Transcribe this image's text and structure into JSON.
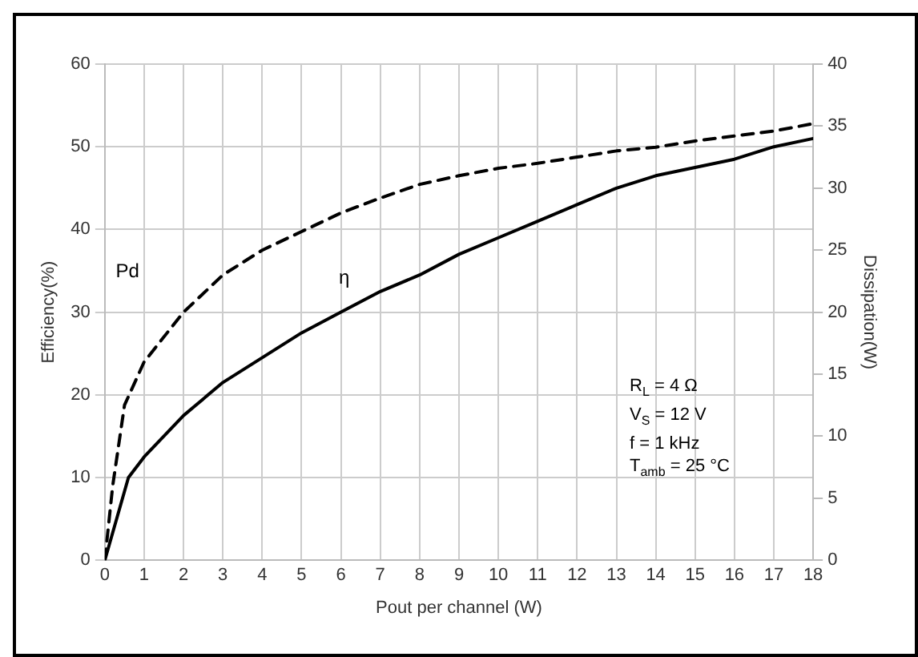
{
  "chart_data": {
    "type": "line",
    "xlabel": "Pout per channel (W)",
    "ylabel": "Efficiency(%)",
    "y2label": "Dissipation(W)",
    "xlim": [
      0,
      18
    ],
    "xticks": [
      0,
      1,
      2,
      3,
      4,
      5,
      6,
      7,
      8,
      9,
      10,
      11,
      12,
      13,
      14,
      15,
      16,
      17,
      18
    ],
    "ylim": [
      0,
      60
    ],
    "yticks": [
      0,
      10,
      20,
      30,
      40,
      50,
      60
    ],
    "y2lim": [
      0,
      40
    ],
    "y2ticks": [
      0,
      5,
      10,
      15,
      20,
      25,
      30,
      35,
      40
    ],
    "series": [
      {
        "name": "Pd",
        "color": "#000000",
        "axis": "y2",
        "line_style": "dashed",
        "x": [
          0,
          0.2,
          0.5,
          1,
          2,
          3,
          4,
          5,
          6,
          7,
          8,
          9,
          10,
          11,
          12,
          13,
          14,
          15,
          16,
          17,
          18
        ],
        "values": [
          0,
          6,
          12.5,
          16,
          20,
          23,
          25,
          26.5,
          28,
          29.2,
          30.3,
          31,
          31.6,
          32,
          32.5,
          33,
          33.3,
          33.8,
          34.2,
          34.6,
          35.2
        ]
      },
      {
        "name": "η",
        "color": "#000000",
        "line_style": "solid",
        "x": [
          0,
          0.6,
          1,
          2,
          3,
          4,
          5,
          6,
          7,
          8,
          9,
          10,
          11,
          12,
          13,
          14,
          15,
          16,
          17,
          18
        ],
        "values": [
          0,
          10,
          12.5,
          17.5,
          21.5,
          24.5,
          27.5,
          30,
          32.5,
          34.5,
          37,
          39,
          41,
          43,
          45,
          46.5,
          47.5,
          48.5,
          50,
          51
        ]
      }
    ],
    "annotations": [
      "R$_{L}$ = 4 Ω\nV$_{S}$ = 12 V\nf = 1 kHz\nT$_{amb}$ = 25 °C"
    ],
    "grid": true,
    "legend": false,
    "marker": "none"
  }
}
